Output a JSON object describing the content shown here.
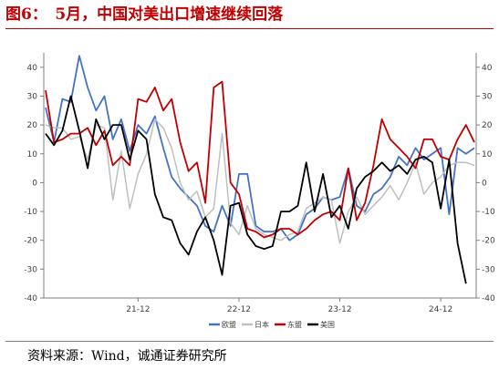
{
  "figure": {
    "title": "图6：　5月，中国对美出口增速继续回落",
    "source": "资料来源：Wind，诚通证券研究所"
  },
  "colors": {
    "eu": "#4472c4",
    "japan": "#bfbfbf",
    "asean": "#c00000",
    "usa": "#000000",
    "axis": "#7f7f7f",
    "title": "#c00000"
  },
  "chart_data": {
    "type": "line",
    "x_tick_labels": [
      "21-12",
      "22-12",
      "23-12",
      "24-12"
    ],
    "x_tick_index": [
      11,
      23,
      35,
      47
    ],
    "ylim": [
      -40,
      45
    ],
    "y_ticks": [
      -40,
      -30,
      -20,
      -10,
      0,
      10,
      20,
      30,
      40
    ],
    "y_tick_labels": [
      "-40",
      "-30",
      "-20",
      "-10",
      "0",
      "10",
      "20",
      "30",
      "40"
    ],
    "grid": false,
    "legend_position": "bottom",
    "series": [
      {
        "name": "欧盟",
        "color_key": "eu",
        "values": [
          26,
          14,
          29,
          28,
          44,
          33,
          25,
          30,
          15,
          22,
          11,
          20,
          17,
          23,
          12,
          2,
          -2,
          -5,
          -8,
          -15,
          -17,
          -8,
          -15,
          3,
          3,
          -15,
          -17,
          -17,
          -16,
          -20,
          -18,
          -11,
          -9,
          -5,
          -6,
          -5,
          5,
          -8,
          -10,
          -4,
          -2,
          2,
          9,
          6,
          12,
          8,
          10,
          12,
          -11,
          12,
          10,
          12
        ]
      },
      {
        "name": "日本",
        "color_key": "japan",
        "values": [
          20,
          19,
          19,
          15,
          16,
          8,
          20,
          19,
          -6,
          11,
          -9,
          3,
          10,
          22,
          19,
          12,
          0,
          -6,
          -3,
          -12,
          -9,
          17,
          -14,
          -18,
          -8,
          -16,
          -18,
          -19,
          -20,
          -18,
          -17,
          -9,
          -7,
          -5,
          -6,
          -21,
          -10,
          -5,
          -11,
          -8,
          -5,
          -1,
          -6,
          0,
          7,
          -4,
          0,
          2,
          6,
          7,
          7,
          6
        ]
      },
      {
        "name": "东盟",
        "color_key": "asean",
        "values": [
          32,
          14,
          15,
          17,
          17,
          19,
          13,
          18,
          6,
          9,
          6,
          29,
          28,
          33,
          25,
          29,
          14,
          4,
          7,
          -7,
          33,
          35,
          0,
          -4,
          -16,
          -17,
          -19,
          -18,
          -16,
          -16,
          -18,
          -16,
          -13,
          -11,
          -10,
          -13,
          5,
          -13,
          -7,
          6,
          22,
          15,
          12,
          9,
          5,
          15,
          15,
          9,
          8,
          15,
          20,
          14
        ]
      },
      {
        "name": "美国",
        "color_key": "usa",
        "values": [
          17,
          13,
          18,
          30,
          18,
          5,
          22,
          15,
          20,
          20,
          8,
          18,
          15,
          -4,
          -12,
          -13,
          -21,
          -25,
          -17,
          -12,
          -20,
          -32,
          -8,
          -7,
          -18,
          -22,
          -23,
          -22,
          -10,
          -10,
          -8,
          7,
          -10,
          3,
          -12,
          -8,
          -16,
          -2,
          2,
          4,
          7,
          4,
          6,
          3,
          8,
          9,
          7,
          -9,
          8,
          -21,
          -35
        ]
      }
    ],
    "legend": [
      "欧盟",
      "日本",
      "东盟",
      "美国"
    ]
  }
}
